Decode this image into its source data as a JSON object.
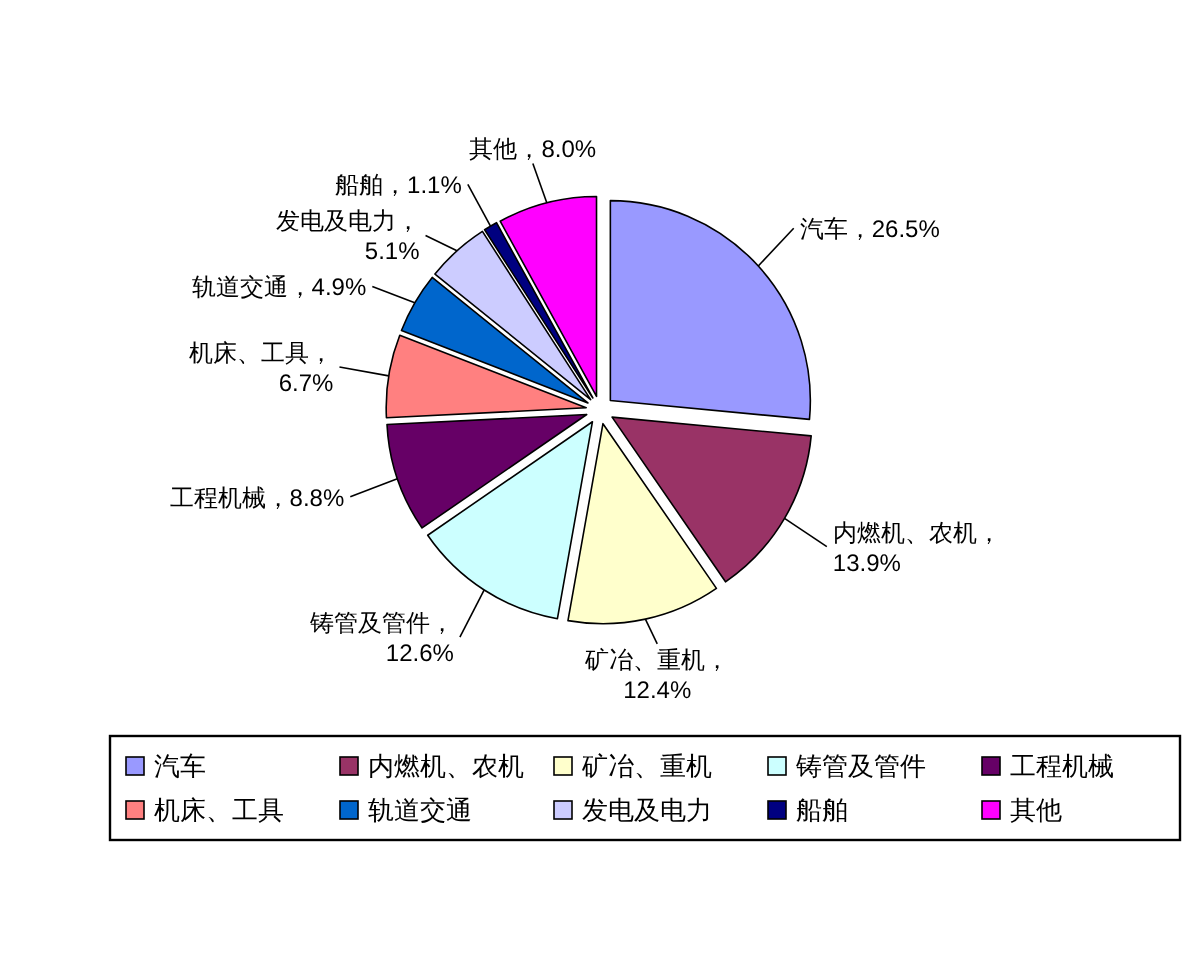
{
  "chart_data": {
    "type": "pie",
    "categories": [
      "汽车",
      "内燃机、农机",
      "矿冶、重机",
      "铸管及管件",
      "工程机械",
      "机床、工具",
      "轨道交通",
      "发电及电力",
      "船舶",
      "其他"
    ],
    "values": [
      26.5,
      13.9,
      12.4,
      12.6,
      8.8,
      6.7,
      4.9,
      5.1,
      1.1,
      8.0
    ],
    "colors": [
      "#9999ff",
      "#993366",
      "#ffffcc",
      "#ccffff",
      "#660066",
      "#ff8080",
      "#0066cc",
      "#ccccff",
      "#000080",
      "#ff00ff"
    ],
    "value_labels": [
      "汽车，26.5%",
      "内燃机、农机，\n13.9%",
      "矿冶、重机，\n12.4%",
      "铸管及管件，\n12.6%",
      "工程机械，8.8%",
      "机床、工具，\n6.7%",
      "轨道交通，4.9%",
      "发电及电力，\n5.1%",
      "船舶，1.1%",
      "其他，8.0%"
    ],
    "legend": "bottom"
  }
}
